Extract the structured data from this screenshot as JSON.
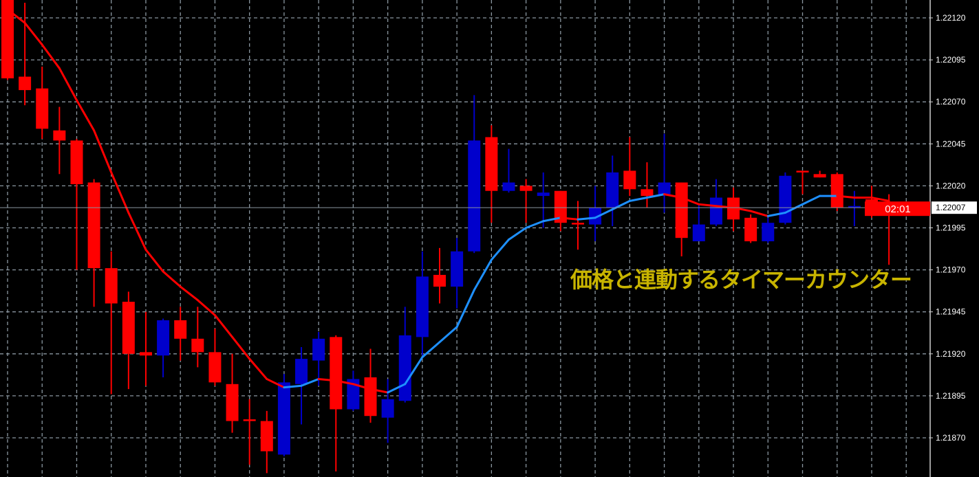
{
  "chart_data": {
    "type": "candlestick",
    "title": "",
    "xlabel": "",
    "ylabel": "",
    "ylim": [
      1.21843,
      1.2213
    ],
    "y_ticks": [
      "1.22120",
      "1.22095",
      "1.22070",
      "1.22045",
      "1.22020",
      "1.21995",
      "1.21970",
      "1.21945",
      "1.21920",
      "1.21895",
      "1.21870"
    ],
    "grid": true,
    "grid_style": "dashed",
    "colors": {
      "background": "#000000",
      "bull": "#0000cc",
      "bear": "#ff0000",
      "grid": "#8a96a0",
      "ma_up": "#1e90ff",
      "ma_down": "#ff0000",
      "axis_text": "#ffffff",
      "price_line": "#8a96a0"
    },
    "current_price": "1.22007",
    "timer_label": "02:01",
    "candles": [
      [
        1.22132,
        1.22133,
        1.22083,
        1.22084
      ],
      [
        1.22085,
        1.22129,
        1.22068,
        1.22077
      ],
      [
        1.22078,
        1.22091,
        1.22048,
        1.22054
      ],
      [
        1.22053,
        1.22067,
        1.22027,
        1.22047
      ],
      [
        1.22047,
        1.22048,
        1.2197,
        1.22021
      ],
      [
        1.22022,
        1.22024,
        1.21948,
        1.21971
      ],
      [
        1.21971,
        1.21981,
        1.21896,
        1.2195
      ],
      [
        1.21951,
        1.21957,
        1.21899,
        1.2192
      ],
      [
        1.21921,
        1.21945,
        1.21901,
        1.21919
      ],
      [
        1.21919,
        1.21941,
        1.21906,
        1.2194
      ],
      [
        1.2194,
        1.21948,
        1.21916,
        1.21929
      ],
      [
        1.21929,
        1.21948,
        1.21912,
        1.21921
      ],
      [
        1.21921,
        1.21935,
        1.21901,
        1.21903
      ],
      [
        1.21902,
        1.2192,
        1.21873,
        1.2188
      ],
      [
        1.21881,
        1.21893,
        1.21854,
        1.2188
      ],
      [
        1.2188,
        1.21886,
        1.21849,
        1.21862
      ],
      [
        1.2186,
        1.21908,
        1.21859,
        1.21903
      ],
      [
        1.21902,
        1.21924,
        1.21878,
        1.21917
      ],
      [
        1.21916,
        1.21933,
        1.21901,
        1.21929
      ],
      [
        1.2193,
        1.21931,
        1.2185,
        1.21887
      ],
      [
        1.21887,
        1.2191,
        1.21886,
        1.21905
      ],
      [
        1.21906,
        1.21923,
        1.21879,
        1.21883
      ],
      [
        1.21882,
        1.21905,
        1.21867,
        1.21893
      ],
      [
        1.21892,
        1.21948,
        1.21891,
        1.21931
      ],
      [
        1.2193,
        1.21981,
        1.21919,
        1.21966
      ],
      [
        1.21967,
        1.21983,
        1.2195,
        1.2196
      ],
      [
        1.2196,
        1.21989,
        1.21947,
        1.21981
      ],
      [
        1.21981,
        1.22074,
        1.2198,
        1.22047
      ],
      [
        1.22049,
        1.22056,
        1.21998,
        1.22017
      ],
      [
        1.22017,
        1.22042,
        1.22016,
        1.22022
      ],
      [
        1.2202,
        1.22024,
        1.21998,
        1.22017
      ],
      [
        1.22014,
        1.22028,
        1.21995,
        1.22016
      ],
      [
        1.22017,
        1.22017,
        1.21993,
        1.21998
      ],
      [
        1.21998,
        1.22011,
        1.21982,
        1.21997
      ],
      [
        1.21997,
        1.2202,
        1.21987,
        1.22007
      ],
      [
        1.22007,
        1.22038,
        1.21996,
        1.22028
      ],
      [
        1.22029,
        1.22049,
        1.22014,
        1.22018
      ],
      [
        1.22018,
        1.22034,
        1.22007,
        1.22014
      ],
      [
        1.22015,
        1.22051,
        1.22004,
        1.22022
      ],
      [
        1.22022,
        1.22022,
        1.21978,
        1.21989
      ],
      [
        1.21987,
        1.22009,
        1.21987,
        1.21997
      ],
      [
        1.21997,
        1.22024,
        1.21996,
        1.22013
      ],
      [
        1.22013,
        1.22019,
        1.21993,
        1.22
      ],
      [
        1.22001,
        1.22003,
        1.21986,
        1.21987
      ],
      [
        1.21987,
        1.22001,
        1.21986,
        1.21998
      ],
      [
        1.21998,
        1.22028,
        1.21997,
        1.22026
      ],
      [
        1.22029,
        1.22029,
        1.22015,
        1.22028
      ],
      [
        1.22027,
        1.22029,
        1.22025,
        1.22025
      ],
      [
        1.22027,
        1.22028,
        1.22005,
        1.22007
      ],
      [
        1.22007,
        1.22017,
        1.21996,
        1.22008
      ],
      [
        1.22012,
        1.2202,
        1.22001,
        1.22007
      ],
      [
        1.22008,
        1.22015,
        1.21973,
        1.22007
      ]
    ],
    "candle_fields": [
      "open",
      "high",
      "low",
      "close"
    ],
    "moving_average": [
      1.22125,
      1.22117,
      1.22104,
      1.2209,
      1.22071,
      1.22053,
      1.22028,
      1.22004,
      1.21982,
      1.21969,
      1.2196,
      1.21952,
      1.21943,
      1.2193,
      1.21917,
      1.21905,
      1.219,
      1.21901,
      1.21905,
      1.21904,
      1.21902,
      1.21899,
      1.21897,
      1.21902,
      1.21918,
      1.21927,
      1.21936,
      1.21958,
      1.21976,
      1.21988,
      1.21995,
      1.21999,
      1.22001,
      1.22,
      1.22001,
      1.22006,
      1.22011,
      1.22013,
      1.22015,
      1.22013,
      1.22009,
      1.22008,
      1.22007,
      1.22005,
      1.22002,
      1.22004,
      1.22009,
      1.22014,
      1.22014,
      1.22013,
      1.22013,
      1.22011
    ]
  },
  "overlay_text": "価格と連動するタイマーカウンター"
}
